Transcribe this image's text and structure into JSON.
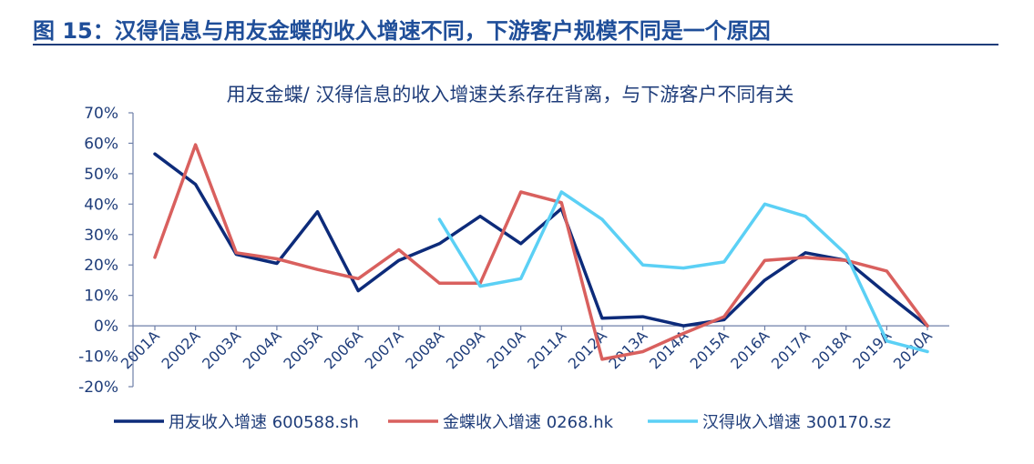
{
  "figure": {
    "title": "图 15：汉得信息与用友金蝶的收入增速不同，下游客户规模不同是一个原因"
  },
  "chart_data": {
    "type": "line",
    "title": "用友金蝶/ 汉得信息的收入增速关系存在背离，与下游客户不同有关",
    "xlabel": "",
    "ylabel": "",
    "ylim": [
      -20,
      70
    ],
    "yticks": [
      "-20%",
      "-10%",
      "0%",
      "10%",
      "20%",
      "30%",
      "40%",
      "50%",
      "60%",
      "70%"
    ],
    "categories": [
      "2001A",
      "2002A",
      "2003A",
      "2004A",
      "2005A",
      "2006A",
      "2007A",
      "2008A",
      "2009A",
      "2010A",
      "2011A",
      "2012A",
      "2013A",
      "2014A",
      "2015A",
      "2016A",
      "2017A",
      "2018A",
      "2019A",
      "2020A"
    ],
    "legend_position": "bottom",
    "grid": false,
    "series": [
      {
        "name": "用友收入增速 600588.sh",
        "color": "#0d2b7a",
        "values": [
          56.5,
          46.5,
          23.5,
          20.5,
          37.5,
          11.5,
          21.5,
          27,
          36,
          27,
          38.5,
          2.5,
          3,
          0,
          2,
          15,
          24,
          21.5,
          10.5,
          0
        ]
      },
      {
        "name": "金蝶收入增速 0268.hk",
        "color": "#d9605e",
        "values": [
          22.5,
          59.5,
          24,
          22,
          18.5,
          15.5,
          25,
          14,
          14,
          44,
          40.5,
          -11,
          -8.5,
          -2.5,
          3,
          21.5,
          22.5,
          21.5,
          18,
          0
        ]
      },
      {
        "name": "汉得收入增速 300170.sz",
        "color": "#5bd0f5",
        "values": [
          null,
          null,
          null,
          null,
          null,
          null,
          null,
          35,
          13,
          15.5,
          44,
          35,
          20,
          19,
          21,
          40,
          36,
          23.5,
          -5,
          -8.5
        ]
      }
    ]
  }
}
